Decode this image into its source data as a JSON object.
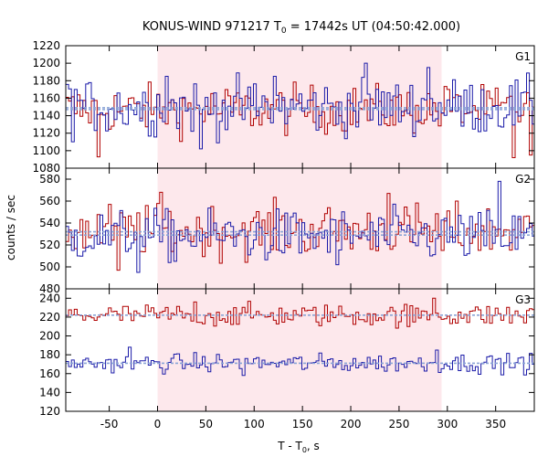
{
  "chart_data": {
    "type": "line",
    "title": {
      "prefix": "KONUS-WIND 971217 T",
      "sub": "0",
      "suffix": " = 17442s UT (04:50:42.000)"
    },
    "xlabel": {
      "prefix": "T - T",
      "sub": "0",
      "suffix": ", s"
    },
    "ylabel": "counts / sec",
    "xlim": [
      -95,
      390
    ],
    "x_ticks": [
      -50,
      0,
      50,
      100,
      150,
      200,
      250,
      300,
      350
    ],
    "shaded_interval": [
      0,
      294
    ],
    "bin_width": 2.944,
    "grid": false,
    "panels": [
      {
        "label": "G1",
        "ylim": [
          1080,
          1220
        ],
        "y_ticks": [
          1080,
          1100,
          1120,
          1140,
          1160,
          1180,
          1200,
          1220
        ],
        "series": [
          {
            "color": "#b00000",
            "mean": 1147,
            "spread": 14,
            "excursions": [
              [
                -60,
                1093
              ],
              [
                300,
                1170
              ],
              [
                368,
                1092
              ],
              [
                385,
                1095
              ]
            ]
          },
          {
            "color": "#1a1aa8",
            "mean": 1150,
            "spread": 16,
            "excursions": [
              [
                -85,
                1170
              ],
              [
                10,
                1185
              ],
              [
                45,
                1102
              ],
              [
                120,
                1185
              ],
              [
                215,
                1200
              ],
              [
                280,
                1195
              ]
            ]
          }
        ],
        "background_lines": [
          1147,
          1149
        ]
      },
      {
        "label": "G2",
        "ylim": [
          480,
          590
        ],
        "y_ticks": [
          480,
          500,
          520,
          540,
          560,
          580
        ],
        "series": [
          {
            "color": "#b00000",
            "mean": 533,
            "spread": 12,
            "excursions": [
              [
                -40,
                497
              ],
              [
                3,
                568
              ],
              [
                240,
                567
              ],
              [
                295,
                515
              ]
            ]
          },
          {
            "color": "#1a1aa8",
            "mean": 528,
            "spread": 12,
            "excursions": [
              [
                -20,
                495
              ],
              [
                185,
                502
              ],
              [
                355,
                578
              ]
            ]
          }
        ],
        "background_lines": [
          532,
          529
        ]
      },
      {
        "label": "G3",
        "ylim": [
          120,
          250
        ],
        "y_ticks": [
          120,
          140,
          160,
          180,
          200,
          220,
          240
        ],
        "series": [
          {
            "color": "#b00000",
            "mean": 222,
            "spread": 6,
            "excursions": [
              [
                40,
                236
              ],
              [
                260,
                210
              ],
              [
                285,
                240
              ]
            ]
          },
          {
            "color": "#1a1aa8",
            "mean": 171,
            "spread": 5,
            "excursions": [
              [
                -30,
                188
              ],
              [
                90,
                158
              ],
              [
                290,
                185
              ]
            ]
          }
        ],
        "background_lines": [
          222,
          171
        ]
      }
    ],
    "colors": {
      "shade": "#fde8ec",
      "background_line": "#8aa4d6",
      "axis": "#000000"
    }
  }
}
